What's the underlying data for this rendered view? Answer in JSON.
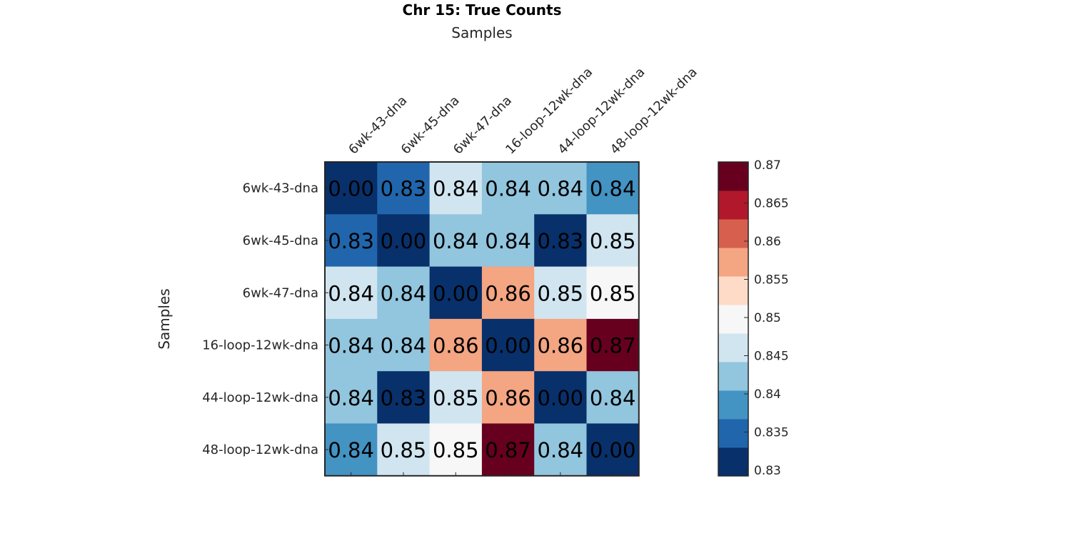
{
  "chart_data": {
    "type": "heatmap",
    "title": "Chr 15: True Counts",
    "xlabel": "Samples",
    "ylabel": "Samples",
    "x_categories": [
      "6wk-43-dna",
      "6wk-45-dna",
      "6wk-47-dna",
      "16-loop-12wk-dna",
      "44-loop-12wk-dna",
      "48-loop-12wk-dna"
    ],
    "y_categories": [
      "6wk-43-dna",
      "6wk-45-dna",
      "6wk-47-dna",
      "16-loop-12wk-dna",
      "44-loop-12wk-dna",
      "48-loop-12wk-dna"
    ],
    "values": [
      [
        0.0,
        0.83,
        0.84,
        0.84,
        0.84,
        0.84
      ],
      [
        0.83,
        0.0,
        0.84,
        0.84,
        0.83,
        0.85
      ],
      [
        0.84,
        0.84,
        0.0,
        0.86,
        0.85,
        0.85
      ],
      [
        0.84,
        0.84,
        0.86,
        0.0,
        0.86,
        0.87
      ],
      [
        0.84,
        0.83,
        0.85,
        0.86,
        0.0,
        0.84
      ],
      [
        0.84,
        0.85,
        0.85,
        0.87,
        0.84,
        0.0
      ]
    ],
    "cell_colors": [
      [
        "#08306b",
        "#2166ac",
        "#d1e5f0",
        "#92c5de",
        "#92c5de",
        "#4393c3"
      ],
      [
        "#2166ac",
        "#08306b",
        "#92c5de",
        "#92c5de",
        "#08306b",
        "#d1e5f0"
      ],
      [
        "#d1e5f0",
        "#92c5de",
        "#08306b",
        "#f4a582",
        "#d1e5f0",
        "#f7f7f7"
      ],
      [
        "#92c5de",
        "#92c5de",
        "#f4a582",
        "#08306b",
        "#f4a582",
        "#67001f"
      ],
      [
        "#92c5de",
        "#08306b",
        "#d1e5f0",
        "#f4a582",
        "#08306b",
        "#92c5de"
      ],
      [
        "#4393c3",
        "#d1e5f0",
        "#f7f7f7",
        "#67001f",
        "#92c5de",
        "#08306b"
      ]
    ],
    "colorbar": {
      "range": [
        0.83,
        0.87
      ],
      "ticks": [
        "0.83",
        "0.835",
        "0.84",
        "0.845",
        "0.85",
        "0.855",
        "0.86",
        "0.865",
        "0.87"
      ],
      "colors": [
        "#08306b",
        "#2166ac",
        "#4393c3",
        "#92c5de",
        "#d1e5f0",
        "#f7f7f7",
        "#fddbc7",
        "#f4a582",
        "#d6604d",
        "#b2182b",
        "#67001f"
      ]
    },
    "grid": false
  }
}
